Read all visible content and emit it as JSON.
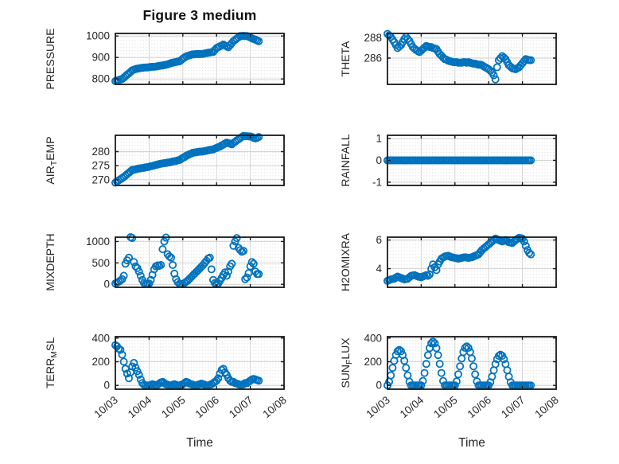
{
  "title": "Figure 3 medium",
  "x_axis": {
    "label": "Time",
    "lim": [
      0,
      5
    ],
    "tick_labels": [
      "10/03",
      "10/04",
      "10/05",
      "10/06",
      "10/07",
      "10/08"
    ]
  },
  "colors": {
    "marker": "#0072BD",
    "frame": "#1a1a1a",
    "major_grid": "#d2d2d2",
    "minor_grid": "#d8d8d8",
    "text": "#262626"
  },
  "chart_data": [
    {
      "type": "scatter",
      "name": "PRESSURE",
      "row": 0,
      "col": 0,
      "label_parts": [
        {
          "text": "PRESSURE"
        }
      ],
      "yticks": [
        800,
        900,
        1000
      ],
      "ylim": [
        775,
        1012
      ],
      "t0": 0,
      "dt": 0.05,
      "y": [
        790,
        792,
        795,
        798,
        800,
        806,
        813,
        820,
        826,
        833,
        840,
        843,
        846,
        848,
        849,
        851,
        852,
        853,
        854,
        854,
        855,
        856,
        857,
        857,
        858,
        859,
        861,
        862,
        863,
        865,
        866,
        868,
        871,
        874,
        876,
        878,
        879,
        881,
        882,
        888,
        895,
        900,
        905,
        908,
        910,
        913,
        915,
        915,
        916,
        916,
        916,
        917,
        917,
        919,
        920,
        922,
        923,
        925,
        926,
        935,
        944,
        948,
        952,
        956,
        960,
        956,
        952,
        948,
        957,
        967,
        976,
        982,
        988,
        994,
        1000,
        1000,
        1001,
        1000,
        1000,
        997,
        993,
        989,
        986,
        983,
        979,
        976
      ]
    },
    {
      "type": "scatter",
      "name": "THETA",
      "row": 0,
      "col": 1,
      "label_parts": [
        {
          "text": "THETA"
        }
      ],
      "yticks": [
        286,
        288
      ],
      "ylim": [
        283.4,
        288.45
      ],
      "t0": 0,
      "dt": 0.05,
      "y": [
        288.4,
        288.25,
        288.1,
        287.85,
        287.6,
        287.3,
        287.0,
        287.15,
        287.3,
        287.6,
        287.9,
        288.1,
        287.9,
        287.7,
        287.4,
        287.1,
        286.95,
        286.8,
        286.7,
        286.6,
        286.75,
        286.9,
        287.05,
        287.2,
        287.15,
        287.1,
        287.1,
        287.0,
        286.95,
        286.9,
        286.65,
        286.4,
        286.25,
        286.05,
        285.9,
        285.85,
        285.75,
        285.7,
        285.65,
        285.6,
        285.6,
        285.6,
        285.55,
        285.55,
        285.55,
        285.6,
        285.6,
        285.55,
        285.6,
        285.55,
        285.5,
        285.45,
        285.45,
        285.4,
        285.35,
        285.35,
        285.3,
        285.2,
        285.1,
        285.0,
        284.9,
        284.75,
        284.6,
        284.3,
        283.9,
        285.1,
        285.8,
        286.0,
        286.2,
        286.05,
        285.9,
        285.6,
        285.3,
        285.15,
        285.0,
        284.95,
        284.9,
        285.0,
        285.1,
        285.3,
        285.5,
        285.7,
        285.9,
        285.85,
        285.8,
        285.8
      ]
    },
    {
      "type": "scatter",
      "name": "AIR_TEMP",
      "row": 1,
      "col": 0,
      "label_parts": [
        {
          "text": "AIR"
        },
        {
          "text": "T",
          "sub": true
        },
        {
          "text": "EMP"
        }
      ],
      "yticks": [
        270,
        275,
        280
      ],
      "ylim": [
        268,
        285.8
      ],
      "t0": 0,
      "dt": 0.05,
      "y": [
        269.0,
        269.4,
        269.8,
        270.2,
        270.6,
        271.0,
        271.5,
        272.0,
        272.5,
        273.0,
        273.5,
        273.6,
        273.7,
        273.9,
        274.0,
        274.1,
        274.2,
        274.3,
        274.4,
        274.5,
        274.6,
        274.8,
        274.9,
        275.1,
        275.3,
        275.4,
        275.6,
        275.7,
        275.8,
        275.9,
        276.0,
        276.1,
        276.2,
        276.3,
        276.5,
        276.6,
        276.7,
        276.9,
        277.0,
        277.4,
        277.8,
        278.1,
        278.5,
        278.8,
        279.1,
        279.3,
        279.6,
        279.7,
        279.8,
        279.9,
        280.0,
        280.0,
        280.1,
        280.2,
        280.3,
        280.5,
        280.6,
        280.7,
        280.8,
        281.1,
        281.3,
        281.6,
        281.8,
        282.2,
        282.5,
        282.9,
        283.2,
        283.0,
        282.8,
        282.6,
        283.1,
        283.5,
        284.0,
        284.4,
        284.8,
        285.2,
        285.6,
        285.5,
        285.5,
        285.4,
        285.4,
        285.2,
        284.9,
        284.7,
        284.9,
        285.2
      ]
    },
    {
      "type": "scatter",
      "name": "RAINFALL",
      "row": 1,
      "col": 1,
      "label_parts": [
        {
          "text": "RAINFALL"
        }
      ],
      "yticks": [
        -1,
        0,
        1
      ],
      "ylim": [
        -1.15,
        1.15
      ],
      "t0": 0,
      "dt": 0.05,
      "y": [
        0,
        0,
        0,
        0,
        0,
        0,
        0,
        0,
        0,
        0,
        0,
        0,
        0,
        0,
        0,
        0,
        0,
        0,
        0,
        0,
        0,
        0,
        0,
        0,
        0,
        0,
        0,
        0,
        0,
        0,
        0,
        0,
        0,
        0,
        0,
        0,
        0,
        0,
        0,
        0,
        0,
        0,
        0,
        0,
        0,
        0,
        0,
        0,
        0,
        0,
        0,
        0,
        0,
        0,
        0,
        0,
        0,
        0,
        0,
        0,
        0,
        0,
        0,
        0,
        0,
        0,
        0,
        0,
        0,
        0,
        0,
        0,
        0,
        0,
        0,
        0,
        0,
        0,
        0,
        0,
        0,
        0,
        0,
        0,
        0,
        0
      ]
    },
    {
      "type": "scatter",
      "name": "MIXDEPTH",
      "row": 2,
      "col": 0,
      "label_parts": [
        {
          "text": "MIXDEPTH"
        }
      ],
      "yticks": [
        0,
        500,
        1000
      ],
      "ylim": [
        -70,
        1100
      ],
      "t0": 0,
      "dt": 0.05,
      "y": [
        20,
        40,
        60,
        90,
        120,
        200,
        480,
        560,
        620,
        1100,
        1080,
        520,
        420,
        380,
        300,
        200,
        100,
        30,
        10,
        10,
        20,
        100,
        220,
        350,
        420,
        440,
        430,
        450,
        820,
        1000,
        1090,
        700,
        650,
        620,
        450,
        250,
        120,
        50,
        10,
        5,
        10,
        30,
        60,
        90,
        130,
        170,
        210,
        250,
        290,
        330,
        370,
        410,
        450,
        500,
        550,
        600,
        620,
        350,
        100,
        30,
        10,
        20,
        80,
        150,
        220,
        280,
        200,
        300,
        420,
        480,
        900,
        1000,
        1080,
        850,
        800,
        760,
        780,
        120,
        160,
        260,
        420,
        520,
        480,
        300,
        240,
        240
      ]
    },
    {
      "type": "scatter",
      "name": "H2OMIXRA",
      "row": 2,
      "col": 1,
      "label_parts": [
        {
          "text": "H2OMIXRA"
        }
      ],
      "yticks": [
        4,
        6
      ],
      "ylim": [
        2.7,
        6.2
      ],
      "t0": 0,
      "dt": 0.05,
      "y": [
        3.15,
        3.2,
        3.25,
        3.28,
        3.3,
        3.38,
        3.45,
        3.4,
        3.35,
        3.3,
        3.25,
        3.28,
        3.3,
        3.4,
        3.5,
        3.53,
        3.55,
        3.5,
        3.45,
        3.43,
        3.4,
        3.45,
        3.5,
        3.55,
        3.5,
        3.6,
        4.0,
        4.3,
        4.1,
        3.9,
        4.3,
        4.5,
        4.7,
        4.78,
        4.85,
        4.88,
        4.9,
        4.85,
        4.8,
        4.78,
        4.75,
        4.73,
        4.7,
        4.73,
        4.75,
        4.78,
        4.8,
        4.78,
        4.75,
        4.78,
        4.8,
        4.85,
        4.9,
        4.95,
        5.0,
        5.15,
        5.3,
        5.4,
        5.5,
        5.6,
        5.7,
        5.8,
        5.9,
        6.0,
        6.1,
        6.05,
        6.0,
        5.95,
        5.9,
        5.95,
        6.0,
        5.93,
        5.85,
        5.83,
        5.8,
        5.9,
        6.0,
        6.08,
        6.15,
        6.13,
        6.1,
        5.9,
        5.6,
        5.3,
        5.1,
        5.0
      ]
    },
    {
      "type": "scatter",
      "name": "TERR_MSL",
      "row": 3,
      "col": 0,
      "label_parts": [
        {
          "text": "TERR"
        },
        {
          "text": "M",
          "sub": true
        },
        {
          "text": "SL"
        }
      ],
      "yticks": [
        0,
        200,
        400
      ],
      "ylim": [
        -32,
        412
      ],
      "t0": 0,
      "dt": 0.05,
      "y": [
        340,
        330,
        310,
        300,
        260,
        200,
        140,
        100,
        60,
        110,
        160,
        190,
        150,
        120,
        90,
        50,
        20,
        5,
        0,
        0,
        0,
        5,
        10,
        5,
        0,
        5,
        15,
        25,
        30,
        20,
        10,
        5,
        0,
        0,
        5,
        10,
        5,
        0,
        0,
        5,
        10,
        20,
        30,
        25,
        15,
        10,
        5,
        0,
        0,
        5,
        10,
        15,
        10,
        5,
        0,
        0,
        5,
        10,
        20,
        30,
        40,
        60,
        100,
        130,
        140,
        110,
        90,
        60,
        40,
        30,
        30,
        20,
        15,
        10,
        5,
        5,
        10,
        20,
        20,
        30,
        40,
        50,
        55,
        50,
        45,
        40
      ]
    },
    {
      "type": "scatter",
      "name": "SUN_FLUX",
      "row": 3,
      "col": 1,
      "label_parts": [
        {
          "text": "SUN"
        },
        {
          "text": "F",
          "sub": true
        },
        {
          "text": "LUX"
        }
      ],
      "yticks": [
        0,
        200,
        400
      ],
      "ylim": [
        -32,
        412
      ],
      "t0": 0,
      "dt": 0.05,
      "y": [
        0,
        31,
        85,
        148,
        208,
        257,
        289,
        300,
        289,
        257,
        208,
        148,
        85,
        31,
        0,
        0,
        0,
        0,
        0,
        0,
        0,
        38,
        105,
        182,
        256,
        316,
        356,
        370,
        356,
        316,
        256,
        182,
        105,
        38,
        0,
        0,
        0,
        0,
        0,
        0,
        0,
        34,
        94,
        162,
        228,
        282,
        318,
        330,
        318,
        282,
        228,
        162,
        94,
        34,
        0,
        0,
        0,
        0,
        0,
        0,
        0,
        27,
        74,
        128,
        180,
        222,
        250,
        260,
        250,
        222,
        180,
        128,
        74,
        27,
        0,
        0,
        0,
        0,
        0,
        0,
        0,
        0,
        0,
        0,
        0,
        0
      ]
    }
  ]
}
